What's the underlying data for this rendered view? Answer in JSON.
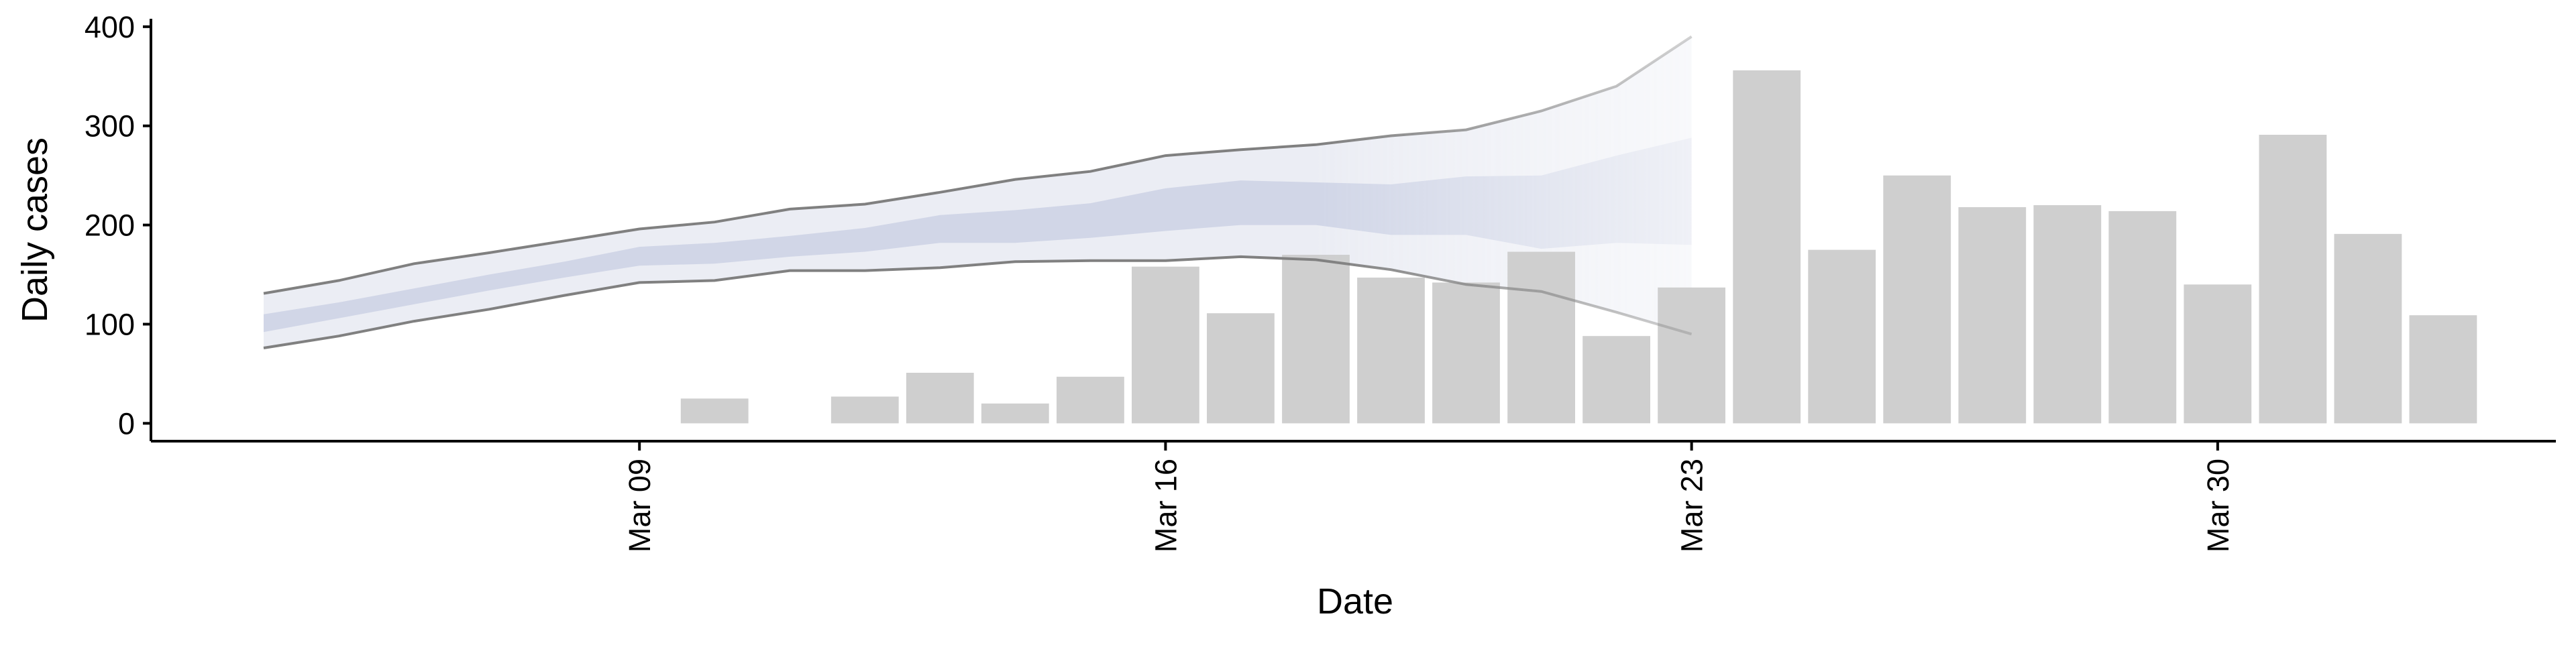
{
  "chart_data": {
    "type": "bar",
    "title": "",
    "xlabel": "Date",
    "ylabel": "Daily cases",
    "ylim": [
      -18,
      408
    ],
    "y_ticks": [
      0,
      100,
      200,
      300,
      400
    ],
    "x_ticks": [
      {
        "label": "Mar 09",
        "date": "2020-03-09"
      },
      {
        "label": "Mar 16",
        "date": "2020-03-16"
      },
      {
        "label": "Mar 23",
        "date": "2020-03-23"
      },
      {
        "label": "Mar 30",
        "date": "2020-03-30"
      }
    ],
    "x_range": [
      "2020-03-02T12:00",
      "2020-04-03T12:00"
    ],
    "grid": false,
    "legend": "none",
    "bars": {
      "name": "",
      "color": "#cccccc",
      "dates": [
        "2020-03-10",
        "2020-03-11",
        "2020-03-12",
        "2020-03-13",
        "2020-03-14",
        "2020-03-15",
        "2020-03-16",
        "2020-03-17",
        "2020-03-18",
        "2020-03-19",
        "2020-03-20",
        "2020-03-21",
        "2020-03-22",
        "2020-03-23",
        "2020-03-24",
        "2020-03-25",
        "2020-03-26",
        "2020-03-27",
        "2020-03-28",
        "2020-03-29",
        "2020-03-30",
        "2020-03-31",
        "2020-04-01",
        "2020-04-02"
      ],
      "values": [
        25,
        0,
        27,
        51,
        20,
        47,
        158,
        111,
        170,
        147,
        142,
        173,
        88,
        137,
        356,
        175,
        250,
        218,
        220,
        214,
        140,
        291,
        191,
        109
      ]
    },
    "forecast": {
      "color": "#bcc3dc",
      "dates": [
        "2020-03-04",
        "2020-03-05",
        "2020-03-06",
        "2020-03-07",
        "2020-03-08",
        "2020-03-09",
        "2020-03-10",
        "2020-03-11",
        "2020-03-12",
        "2020-03-13",
        "2020-03-14",
        "2020-03-15",
        "2020-03-16",
        "2020-03-17",
        "2020-03-18",
        "2020-03-19",
        "2020-03-20",
        "2020-03-21",
        "2020-03-22",
        "2020-03-23",
        "2020-03-24"
      ],
      "upper_90": [
        131,
        144,
        161,
        172,
        184,
        196,
        203,
        216,
        221,
        233,
        246,
        254,
        270,
        276,
        281,
        290,
        296,
        315,
        340,
        390,
        null
      ],
      "lower_90": [
        76,
        88,
        103,
        115,
        129,
        142,
        144,
        154,
        154,
        157,
        163,
        164,
        164,
        168,
        165,
        155,
        140,
        133,
        112,
        90,
        null
      ],
      "upper_50": [
        110,
        122,
        136,
        150,
        163,
        178,
        182,
        189,
        197,
        210,
        215,
        222,
        237,
        245,
        243,
        241,
        249,
        250,
        270,
        288,
        null
      ],
      "lower_50": [
        92,
        106,
        120,
        134,
        147,
        159,
        161,
        168,
        173,
        182,
        182,
        187,
        194,
        200,
        200,
        190,
        190,
        176,
        182,
        180,
        null
      ]
    }
  }
}
